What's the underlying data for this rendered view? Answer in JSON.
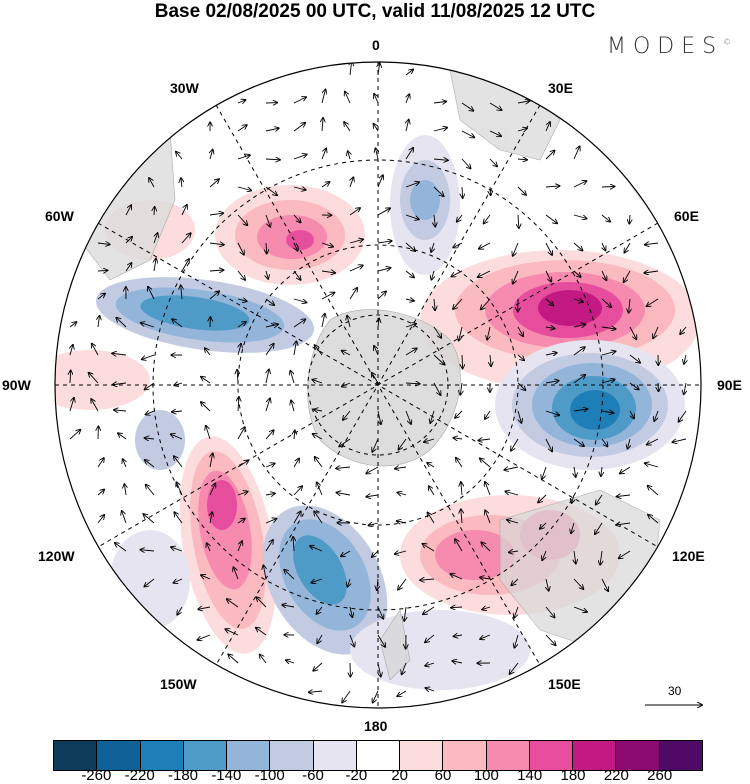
{
  "title": "Base 02/08/2025 00 UTC, valid 11/08/2025 12 UTC",
  "logo": "MODES",
  "logo_mark": "©",
  "lon_labels": {
    "n0": "0",
    "e30": "30E",
    "e60": "60E",
    "e90": "90E",
    "e120": "120E",
    "e150": "150E",
    "s180": "180",
    "w150": "150W",
    "w120": "120W",
    "w90": "90W",
    "w60": "60W",
    "w30": "30W"
  },
  "reference_vector": "30",
  "colorbar": {
    "colors": [
      "#0d3b5a",
      "#0f6096",
      "#1e7fb8",
      "#4f9bc8",
      "#93b5da",
      "#c2cbe2",
      "#e6e4f0",
      "#ffffff",
      "#fcdcdc",
      "#fbb9c0",
      "#f78aaf",
      "#e64e9d",
      "#c21983",
      "#8a0a72",
      "#4f0a68"
    ],
    "ticks": [
      "-260",
      "-220",
      "-180",
      "-140",
      "-100",
      "-60",
      "-20",
      "20",
      "60",
      "100",
      "140",
      "180",
      "220",
      "260"
    ]
  }
}
